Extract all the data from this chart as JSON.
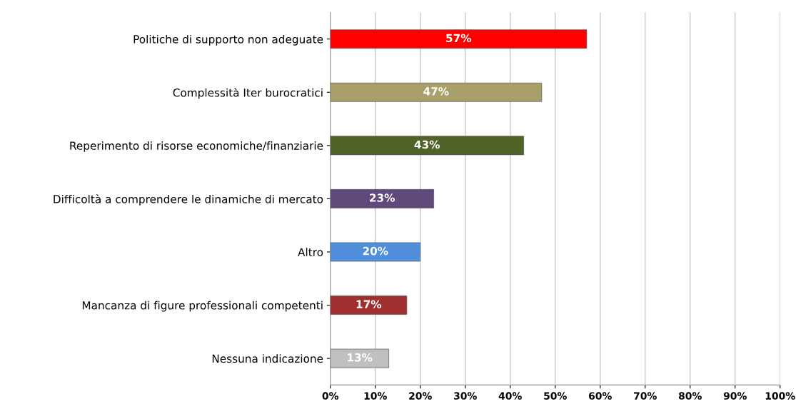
{
  "chart_data": {
    "type": "bar",
    "orientation": "horizontal",
    "categories": [
      "Politiche di supporto non adeguate",
      "Complessità Iter burocratici",
      "Reperimento di risorse economiche/finanziarie",
      "Difficoltà a comprendere le dinamiche di mercato",
      "Altro",
      "Mancanza di figure professionali competenti",
      "Nessuna indicazione"
    ],
    "values": [
      57,
      47,
      43,
      23,
      20,
      17,
      13
    ],
    "colors": [
      "#ff0000",
      "#a89f6a",
      "#4f6228",
      "#604a7b",
      "#4f8fdc",
      "#a03030",
      "#c0c0c0"
    ],
    "value_labels": [
      "57%",
      "47%",
      "43%",
      "23%",
      "20%",
      "17%",
      "13%"
    ],
    "xlim": [
      0,
      100
    ],
    "xticks": [
      {
        "value": 0,
        "label": "0%"
      },
      {
        "value": 10,
        "label": "10%"
      },
      {
        "value": 20,
        "label": "20%"
      },
      {
        "value": 30,
        "label": "30%"
      },
      {
        "value": 40,
        "label": "40%"
      },
      {
        "value": 50,
        "label": "50%"
      },
      {
        "value": 60,
        "label": "60%"
      },
      {
        "value": 70,
        "label": "70%"
      },
      {
        "value": 80,
        "label": "80%"
      },
      {
        "value": 90,
        "label": "90%"
      },
      {
        "value": 100,
        "label": "100%"
      }
    ],
    "grid": "x"
  }
}
